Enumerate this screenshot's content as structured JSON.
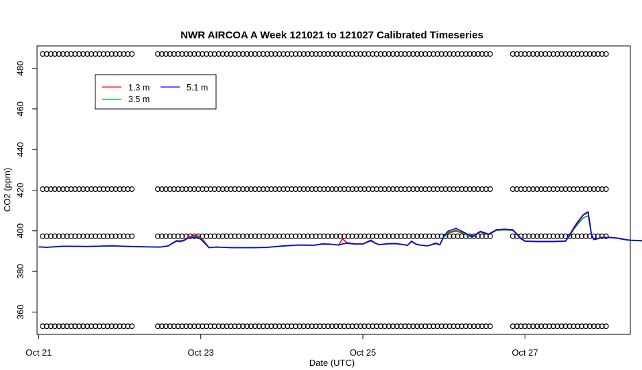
{
  "chart_data": {
    "type": "line",
    "title": "NWR AIRCOA A  Week 121021 to 121027  Calibrated Timeseries",
    "xlabel": "Date (UTC)",
    "ylabel": "CO2 (ppm)",
    "xlim": [
      -0.02,
      7.3
    ],
    "ylim": [
      349,
      491
    ],
    "x_ticks": [
      {
        "x": 0,
        "label": "Oct 21"
      },
      {
        "x": 2,
        "label": "Oct 23"
      },
      {
        "x": 4,
        "label": "Oct 25"
      },
      {
        "x": 6,
        "label": "Oct 27"
      }
    ],
    "y_ticks": [
      360,
      380,
      400,
      420,
      440,
      460,
      480
    ],
    "legend": {
      "position": "top-left",
      "entries": [
        {
          "name": "1.3 m",
          "color": "#ff0000"
        },
        {
          "name": "3.5 m",
          "color": "#00aa00"
        },
        {
          "name": "5.1 m",
          "color": "#0000ff"
        }
      ]
    },
    "x_unit": "days since Oct 21 00:00 UTC",
    "series": [
      {
        "name": "1.3 m",
        "color": "#ff0000",
        "points": [
          [
            0,
            392.0
          ],
          [
            0.1,
            391.8
          ],
          [
            0.3,
            392.4
          ],
          [
            0.6,
            392.3
          ],
          [
            0.9,
            392.6
          ],
          [
            1.2,
            392.2
          ],
          [
            1.5,
            392.0
          ],
          [
            1.6,
            392.6
          ],
          [
            1.7,
            395.2
          ],
          [
            1.75,
            395.0
          ],
          [
            1.8,
            395.6
          ],
          [
            1.85,
            397.2
          ],
          [
            1.95,
            397.8
          ],
          [
            2.0,
            396.8
          ],
          [
            2.05,
            394.5
          ],
          [
            2.1,
            391.8
          ],
          [
            2.2,
            392.0
          ],
          [
            2.4,
            391.6
          ],
          [
            2.6,
            391.6
          ],
          [
            2.8,
            391.8
          ],
          [
            3.0,
            392.5
          ],
          [
            3.2,
            393.0
          ],
          [
            3.4,
            392.9
          ],
          [
            3.5,
            393.6
          ],
          [
            3.6,
            393.4
          ],
          [
            3.7,
            393.0
          ],
          [
            3.75,
            396.0
          ],
          [
            3.8,
            394.2
          ],
          [
            3.9,
            393.6
          ],
          [
            4.0,
            393.5
          ],
          [
            4.1,
            395.5
          ],
          [
            4.15,
            394.0
          ],
          [
            4.2,
            393.2
          ],
          [
            4.3,
            393.6
          ],
          [
            4.4,
            393.8
          ],
          [
            4.5,
            393.2
          ],
          [
            4.55,
            392.8
          ],
          [
            4.6,
            395.0
          ],
          [
            4.65,
            393.6
          ],
          [
            4.7,
            393.0
          ],
          [
            4.8,
            392.6
          ],
          [
            4.9,
            394.0
          ],
          [
            4.95,
            393.2
          ],
          [
            5.0,
            397.5
          ],
          [
            5.05,
            399.2
          ],
          [
            5.15,
            400.2
          ],
          [
            5.25,
            398.8
          ],
          [
            5.35,
            397.2
          ],
          [
            5.45,
            399.8
          ],
          [
            5.55,
            398.4
          ],
          [
            5.65,
            400.6
          ],
          [
            5.75,
            400.8
          ],
          [
            5.85,
            400.6
          ],
          [
            5.95,
            396.5
          ],
          [
            6.0,
            395.0
          ],
          [
            6.15,
            394.8
          ],
          [
            6.35,
            394.8
          ],
          [
            6.5,
            395.0
          ],
          [
            6.55,
            398.0
          ],
          [
            6.6,
            401.5
          ],
          [
            6.65,
            404.5
          ],
          [
            6.72,
            408.0
          ],
          [
            6.78,
            409.5
          ],
          [
            6.82,
            398.5
          ],
          [
            6.85,
            395.8
          ],
          [
            6.95,
            396.8
          ],
          [
            7.05,
            396.8
          ],
          [
            7.15,
            396.4
          ],
          [
            7.2,
            396.0
          ],
          [
            7.3,
            395.4
          ],
          [
            7.45,
            395.2
          ],
          [
            7.6,
            395.0
          ],
          [
            7.75,
            395.4
          ],
          [
            7.9,
            395.0
          ],
          [
            8.05,
            394.9
          ],
          [
            8.15,
            394.8
          ],
          [
            8.3,
            394.6
          ]
        ]
      },
      {
        "name": "3.5 m",
        "color": "#00aa00",
        "points": [
          [
            0,
            392.0
          ],
          [
            0.1,
            391.8
          ],
          [
            0.3,
            392.3
          ],
          [
            0.6,
            392.2
          ],
          [
            0.9,
            392.5
          ],
          [
            1.2,
            392.1
          ],
          [
            1.5,
            391.9
          ],
          [
            1.6,
            392.5
          ],
          [
            1.7,
            394.8
          ],
          [
            1.75,
            394.6
          ],
          [
            1.8,
            395.2
          ],
          [
            1.85,
            396.6
          ],
          [
            1.95,
            397.2
          ],
          [
            2.0,
            396.2
          ],
          [
            2.05,
            394.0
          ],
          [
            2.1,
            391.6
          ],
          [
            2.2,
            391.9
          ],
          [
            2.4,
            391.6
          ],
          [
            2.6,
            391.6
          ],
          [
            2.8,
            391.7
          ],
          [
            3.0,
            392.4
          ],
          [
            3.2,
            392.9
          ],
          [
            3.4,
            392.8
          ],
          [
            3.5,
            393.4
          ],
          [
            3.6,
            393.3
          ],
          [
            3.7,
            392.9
          ],
          [
            3.75,
            393.6
          ],
          [
            3.8,
            393.8
          ],
          [
            3.9,
            393.4
          ],
          [
            4.0,
            393.4
          ],
          [
            4.1,
            395.0
          ],
          [
            4.15,
            393.8
          ],
          [
            4.2,
            393.1
          ],
          [
            4.3,
            393.5
          ],
          [
            4.4,
            393.6
          ],
          [
            4.5,
            393.1
          ],
          [
            4.55,
            392.7
          ],
          [
            4.6,
            394.6
          ],
          [
            4.65,
            393.4
          ],
          [
            4.7,
            392.9
          ],
          [
            4.8,
            392.5
          ],
          [
            4.9,
            393.6
          ],
          [
            4.95,
            393.0
          ],
          [
            5.0,
            397.0
          ],
          [
            5.05,
            398.8
          ],
          [
            5.15,
            399.8
          ],
          [
            5.25,
            398.4
          ],
          [
            5.35,
            396.8
          ],
          [
            5.45,
            399.4
          ],
          [
            5.55,
            398.0
          ],
          [
            5.65,
            400.2
          ],
          [
            5.75,
            400.4
          ],
          [
            5.85,
            400.2
          ],
          [
            5.95,
            396.2
          ],
          [
            6.0,
            394.8
          ],
          [
            6.15,
            394.6
          ],
          [
            6.35,
            394.6
          ],
          [
            6.5,
            394.8
          ],
          [
            6.55,
            397.4
          ],
          [
            6.6,
            400.6
          ],
          [
            6.65,
            403.2
          ],
          [
            6.72,
            406.4
          ],
          [
            6.78,
            407.4
          ],
          [
            6.82,
            398.0
          ],
          [
            6.85,
            395.6
          ],
          [
            6.95,
            396.5
          ],
          [
            7.05,
            396.6
          ],
          [
            7.15,
            396.2
          ],
          [
            7.2,
            395.8
          ],
          [
            7.3,
            395.2
          ],
          [
            7.45,
            395.0
          ],
          [
            7.6,
            394.8
          ],
          [
            7.75,
            395.2
          ],
          [
            7.9,
            394.8
          ],
          [
            8.05,
            394.7
          ],
          [
            8.15,
            394.6
          ],
          [
            8.3,
            394.4
          ]
        ]
      },
      {
        "name": "5.1 m",
        "color": "#0000ff",
        "points": [
          [
            0,
            392.1
          ],
          [
            0.1,
            391.9
          ],
          [
            0.3,
            392.4
          ],
          [
            0.6,
            392.3
          ],
          [
            0.9,
            392.6
          ],
          [
            1.2,
            392.2
          ],
          [
            1.5,
            392.0
          ],
          [
            1.6,
            392.6
          ],
          [
            1.7,
            395.0
          ],
          [
            1.75,
            394.8
          ],
          [
            1.8,
            395.4
          ],
          [
            1.85,
            396.4
          ],
          [
            1.95,
            396.8
          ],
          [
            2.0,
            395.8
          ],
          [
            2.05,
            393.8
          ],
          [
            2.1,
            391.8
          ],
          [
            2.2,
            392.0
          ],
          [
            2.4,
            391.7
          ],
          [
            2.6,
            391.7
          ],
          [
            2.8,
            391.8
          ],
          [
            3.0,
            392.5
          ],
          [
            3.2,
            393.0
          ],
          [
            3.4,
            392.9
          ],
          [
            3.5,
            393.5
          ],
          [
            3.6,
            393.4
          ],
          [
            3.7,
            393.0
          ],
          [
            3.75,
            393.5
          ],
          [
            3.8,
            393.9
          ],
          [
            3.9,
            393.5
          ],
          [
            4.0,
            393.5
          ],
          [
            4.1,
            395.2
          ],
          [
            4.15,
            393.9
          ],
          [
            4.2,
            393.2
          ],
          [
            4.3,
            393.6
          ],
          [
            4.4,
            393.7
          ],
          [
            4.5,
            393.2
          ],
          [
            4.55,
            392.8
          ],
          [
            4.6,
            394.8
          ],
          [
            4.65,
            393.5
          ],
          [
            4.7,
            393.0
          ],
          [
            4.8,
            392.6
          ],
          [
            4.9,
            393.8
          ],
          [
            4.95,
            393.1
          ],
          [
            5.0,
            397.4
          ],
          [
            5.05,
            399.8
          ],
          [
            5.15,
            401.2
          ],
          [
            5.25,
            399.2
          ],
          [
            5.35,
            397.0
          ],
          [
            5.45,
            399.6
          ],
          [
            5.55,
            398.2
          ],
          [
            5.65,
            400.6
          ],
          [
            5.75,
            400.8
          ],
          [
            5.85,
            400.4
          ],
          [
            5.95,
            396.0
          ],
          [
            6.0,
            394.9
          ],
          [
            6.15,
            394.7
          ],
          [
            6.35,
            394.7
          ],
          [
            6.5,
            394.9
          ],
          [
            6.55,
            397.8
          ],
          [
            6.6,
            401.0
          ],
          [
            6.65,
            404.0
          ],
          [
            6.72,
            407.8
          ],
          [
            6.78,
            409.0
          ],
          [
            6.82,
            398.2
          ],
          [
            6.85,
            395.7
          ],
          [
            6.95,
            396.6
          ],
          [
            7.05,
            396.7
          ],
          [
            7.15,
            396.3
          ],
          [
            7.2,
            395.9
          ],
          [
            7.3,
            395.3
          ],
          [
            7.45,
            395.1
          ],
          [
            7.6,
            394.9
          ],
          [
            7.75,
            395.3
          ],
          [
            7.9,
            394.9
          ],
          [
            8.05,
            394.8
          ],
          [
            8.15,
            394.7
          ],
          [
            8.3,
            394.5
          ]
        ]
      }
    ],
    "reference_markers": {
      "marker": "open-circle",
      "levels": [
        {
          "y": 487,
          "segments": [
            [
              0.05,
              1.15
            ],
            [
              1.47,
              5.6
            ],
            [
              5.85,
              7.0
            ]
          ]
        },
        {
          "y": 420.5,
          "segments": [
            [
              0.05,
              1.15
            ],
            [
              1.47,
              5.6
            ],
            [
              5.85,
              7.0
            ]
          ]
        },
        {
          "y": 397.3,
          "segments": [
            [
              0.05,
              1.15
            ],
            [
              1.47,
              5.6
            ],
            [
              5.85,
              7.0
            ]
          ]
        },
        {
          "y": 353,
          "segments": [
            [
              0.05,
              1.15
            ],
            [
              1.47,
              5.6
            ],
            [
              5.85,
              7.0
            ]
          ]
        }
      ],
      "spacing_days": 0.05
    }
  }
}
